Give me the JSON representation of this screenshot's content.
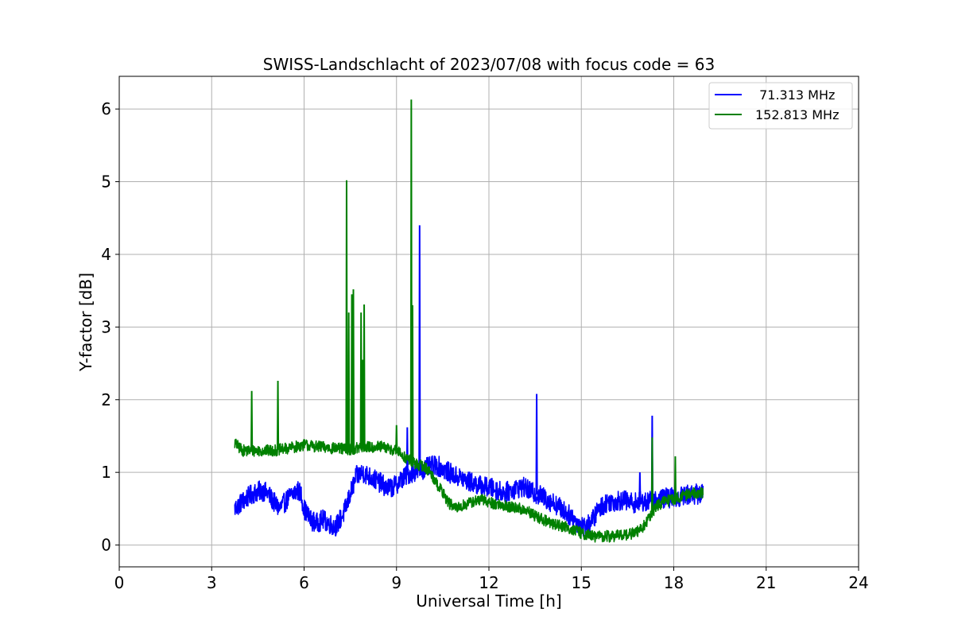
{
  "chart_data": {
    "type": "line",
    "title": "SWISS-Landschlacht of 2023/07/08 with focus code = 63",
    "xlabel": "Universal Time [h]",
    "ylabel": "Y-factor [dB]",
    "xlim": [
      0,
      24
    ],
    "ylim": [
      -0.3,
      6.45
    ],
    "xticks": [
      "0",
      "3",
      "6",
      "9",
      "12",
      "15",
      "18",
      "21",
      "24"
    ],
    "yticks": [
      "0",
      "1",
      "2",
      "3",
      "4",
      "5",
      "6"
    ],
    "grid": true,
    "legend_position": "top-right",
    "series": [
      {
        "name": " 71.313 MHz",
        "color": "#0000ff",
        "noise": 0.14,
        "x": [
          3.75,
          4.0,
          4.3,
          4.6,
          4.8,
          5.0,
          5.2,
          5.4,
          5.6,
          5.8,
          5.9,
          6.0,
          6.2,
          6.4,
          6.6,
          6.8,
          7.0,
          7.1,
          7.3,
          7.5,
          7.7,
          7.9,
          8.1,
          8.3,
          8.5,
          8.7,
          8.9,
          9.1,
          9.3,
          9.5,
          9.7,
          9.9,
          10.1,
          10.3,
          10.5,
          10.7,
          10.9,
          11.1,
          11.3,
          11.5,
          11.7,
          11.9,
          12.1,
          12.3,
          12.5,
          12.7,
          12.9,
          13.1,
          13.3,
          13.5,
          13.7,
          13.9,
          14.1,
          14.3,
          14.5,
          14.7,
          14.9,
          15.1,
          15.3,
          15.5,
          15.7,
          15.9,
          16.1,
          16.3,
          16.5,
          16.7,
          16.9,
          17.1,
          17.3,
          17.5,
          17.7,
          17.9,
          18.1,
          18.3,
          18.5,
          18.7,
          18.95
        ],
        "y": [
          0.5,
          0.6,
          0.7,
          0.75,
          0.72,
          0.6,
          0.5,
          0.6,
          0.7,
          0.75,
          0.7,
          0.5,
          0.35,
          0.3,
          0.35,
          0.3,
          0.25,
          0.3,
          0.45,
          0.7,
          0.95,
          1.0,
          0.95,
          0.9,
          0.85,
          0.78,
          0.8,
          0.88,
          0.95,
          1.0,
          1.02,
          1.05,
          1.08,
          1.1,
          1.05,
          1.0,
          0.95,
          0.92,
          0.88,
          0.85,
          0.82,
          0.8,
          0.78,
          0.75,
          0.72,
          0.75,
          0.78,
          0.8,
          0.75,
          0.7,
          0.68,
          0.62,
          0.58,
          0.52,
          0.45,
          0.38,
          0.3,
          0.25,
          0.3,
          0.45,
          0.55,
          0.6,
          0.6,
          0.62,
          0.6,
          0.58,
          0.6,
          0.6,
          0.6,
          0.62,
          0.65,
          0.65,
          0.65,
          0.68,
          0.7,
          0.7,
          0.7
        ],
        "spikes": [
          [
            9.75,
            4.4
          ],
          [
            13.55,
            2.08
          ],
          [
            17.3,
            1.78
          ],
          [
            9.35,
            1.62
          ],
          [
            16.9,
            1.0
          ]
        ]
      },
      {
        "name": "152.813 MHz",
        "color": "#008000",
        "noise": 0.08,
        "x": [
          3.75,
          4.0,
          4.5,
          5.0,
          5.5,
          6.0,
          6.5,
          7.0,
          7.5,
          8.0,
          8.5,
          9.0,
          9.3,
          9.6,
          9.9,
          10.1,
          10.3,
          10.5,
          10.7,
          10.9,
          11.2,
          11.5,
          11.8,
          12.1,
          12.4,
          12.7,
          13.0,
          13.3,
          13.6,
          13.9,
          14.2,
          14.5,
          14.8,
          15.1,
          15.4,
          15.7,
          16.0,
          16.3,
          16.6,
          16.9,
          17.1,
          17.3,
          17.5,
          17.7,
          17.9,
          18.1,
          18.3,
          18.5,
          18.7,
          18.95
        ],
        "y": [
          1.4,
          1.3,
          1.3,
          1.3,
          1.33,
          1.38,
          1.35,
          1.33,
          1.32,
          1.35,
          1.35,
          1.3,
          1.2,
          1.12,
          1.08,
          1.0,
          0.85,
          0.72,
          0.58,
          0.5,
          0.55,
          0.6,
          0.62,
          0.58,
          0.55,
          0.52,
          0.5,
          0.45,
          0.38,
          0.32,
          0.28,
          0.25,
          0.2,
          0.15,
          0.12,
          0.12,
          0.12,
          0.14,
          0.15,
          0.2,
          0.3,
          0.45,
          0.55,
          0.6,
          0.62,
          0.65,
          0.68,
          0.7,
          0.72,
          0.72
        ],
        "spikes": [
          [
            4.3,
            2.12
          ],
          [
            5.15,
            2.26
          ],
          [
            7.38,
            5.02
          ],
          [
            7.45,
            3.2
          ],
          [
            7.6,
            3.52
          ],
          [
            7.55,
            3.45
          ],
          [
            7.85,
            3.2
          ],
          [
            7.95,
            3.31
          ],
          [
            7.9,
            2.55
          ],
          [
            9.0,
            1.65
          ],
          [
            9.48,
            6.13
          ],
          [
            9.52,
            3.3
          ],
          [
            17.3,
            1.48
          ],
          [
            18.05,
            1.22
          ]
        ]
      }
    ]
  }
}
